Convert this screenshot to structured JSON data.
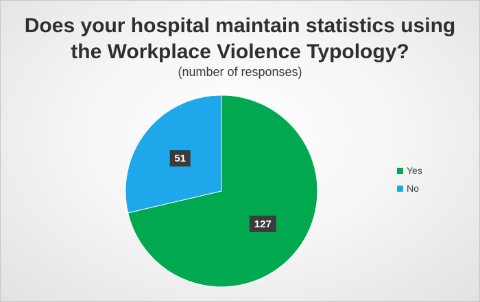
{
  "chart_data": {
    "type": "pie",
    "title_lines": [
      "Does your hospital maintain statistics using",
      "the Workplace Violence Typology?"
    ],
    "subtitle": "(number of responses)",
    "slices": [
      {
        "label": "Yes",
        "value": 127,
        "color": "#00a84f"
      },
      {
        "label": "No",
        "value": 51,
        "color": "#1ea7ea"
      }
    ],
    "legend_position": "right"
  }
}
